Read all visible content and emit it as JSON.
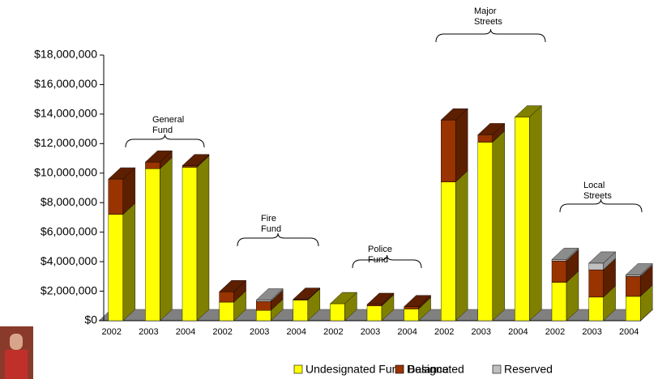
{
  "chart_data": {
    "type": "bar3d-stacked",
    "categories": [
      "2002",
      "2003",
      "2004",
      "2002",
      "2003",
      "2004",
      "2002",
      "2003",
      "2004",
      "2002",
      "2003",
      "2004",
      "2002",
      "2003",
      "2004"
    ],
    "series": [
      {
        "name": "Undesignated Fund Balance",
        "color": "#ffff00",
        "side_color": "#808000",
        "values": [
          7200000,
          10300000,
          10400000,
          1260000,
          700000,
          1400000,
          1150000,
          1000000,
          800000,
          9400000,
          12100000,
          13800000,
          2600000,
          1600000,
          1650000
        ]
      },
      {
        "name": "Designated",
        "color": "#993300",
        "side_color": "#5c1f00",
        "values": [
          2400000,
          450000,
          100000,
          700000,
          600000,
          50000,
          0,
          100000,
          150000,
          4200000,
          500000,
          0,
          1450000,
          1850000,
          1350000
        ]
      },
      {
        "name": "Reserved",
        "color": "#c0c0c0",
        "side_color": "#8c8c8c",
        "values": [
          0,
          0,
          0,
          0,
          100000,
          0,
          0,
          0,
          0,
          0,
          0,
          0,
          100000,
          450000,
          100000
        ]
      }
    ],
    "ylim": [
      0,
      18000000
    ],
    "yticks": [
      {
        "value": 0,
        "label": "$0"
      },
      {
        "value": 2000000,
        "label": "$2,000,000"
      },
      {
        "value": 4000000,
        "label": "$4,000,000"
      },
      {
        "value": 6000000,
        "label": "$6,000,000"
      },
      {
        "value": 8000000,
        "label": "$8,000,000"
      },
      {
        "value": 10000000,
        "label": "$10,000,000"
      },
      {
        "value": 12000000,
        "label": "$12,000,000"
      },
      {
        "value": 14000000,
        "label": "$14,000,000"
      },
      {
        "value": 16000000,
        "label": "$16,000,000"
      },
      {
        "value": 18000000,
        "label": "$18,000,000"
      }
    ],
    "annotations": [
      {
        "lines": [
          "General",
          "Fund"
        ]
      },
      {
        "lines": [
          "Fire",
          "Fund"
        ]
      },
      {
        "lines": [
          "Police",
          "Fund"
        ]
      },
      {
        "lines": [
          "Major",
          "Streets"
        ]
      },
      {
        "lines": [
          "Local",
          "Streets"
        ]
      }
    ],
    "legend": "bottom"
  }
}
